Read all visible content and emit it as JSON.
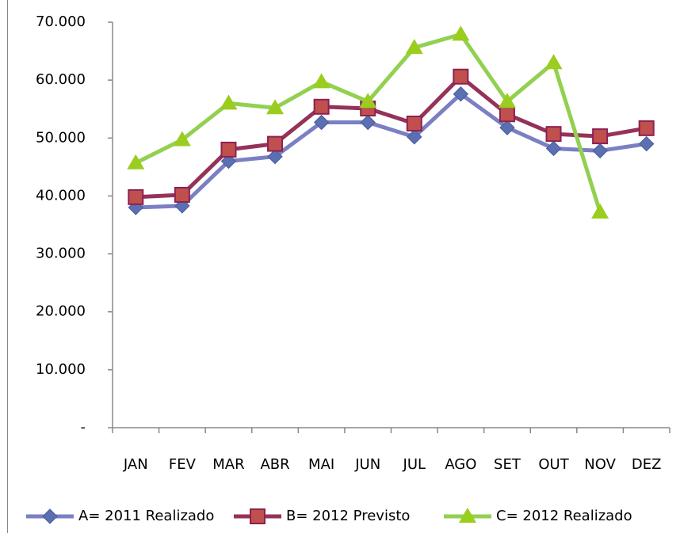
{
  "chart_data": {
    "type": "line",
    "categories": [
      "JAN",
      "FEV",
      "MAR",
      "ABR",
      "MAI",
      "JUN",
      "JUL",
      "AGO",
      "SET",
      "OUT",
      "NOV",
      "DEZ"
    ],
    "series": [
      {
        "name": "A= 2011 Realizado",
        "color": "#7b7fc4",
        "marker": "diamond",
        "marker_color": "#5b6fb3",
        "values": [
          38000,
          38300,
          46000,
          46800,
          52700,
          52700,
          50200,
          57600,
          51800,
          48200,
          47800,
          49000
        ]
      },
      {
        "name": "B= 2012 Previsto",
        "color": "#953259",
        "marker": "square",
        "marker_color": "#c0504d",
        "values": [
          39800,
          40200,
          48000,
          49000,
          55400,
          55100,
          52500,
          60600,
          54100,
          50700,
          50300,
          51700
        ]
      },
      {
        "name": "C= 2012 Realizado",
        "color": "#92d050",
        "marker": "triangle",
        "marker_color": "#9acd1e",
        "values": [
          45700,
          49700,
          56000,
          55200,
          59700,
          56300,
          65600,
          67900,
          56300,
          63000,
          37200,
          null
        ]
      }
    ],
    "ylim": [
      0,
      70000
    ],
    "yticks": [
      {
        "value": 0,
        "label": "-"
      },
      {
        "value": 10000,
        "label": "10.000"
      },
      {
        "value": 20000,
        "label": "20.000"
      },
      {
        "value": 30000,
        "label": "30.000"
      },
      {
        "value": 40000,
        "label": "40.000"
      },
      {
        "value": 50000,
        "label": "50.000"
      },
      {
        "value": 60000,
        "label": "60.000"
      },
      {
        "value": 70000,
        "label": "70.000"
      }
    ],
    "grid": false,
    "legend": "bottom"
  }
}
